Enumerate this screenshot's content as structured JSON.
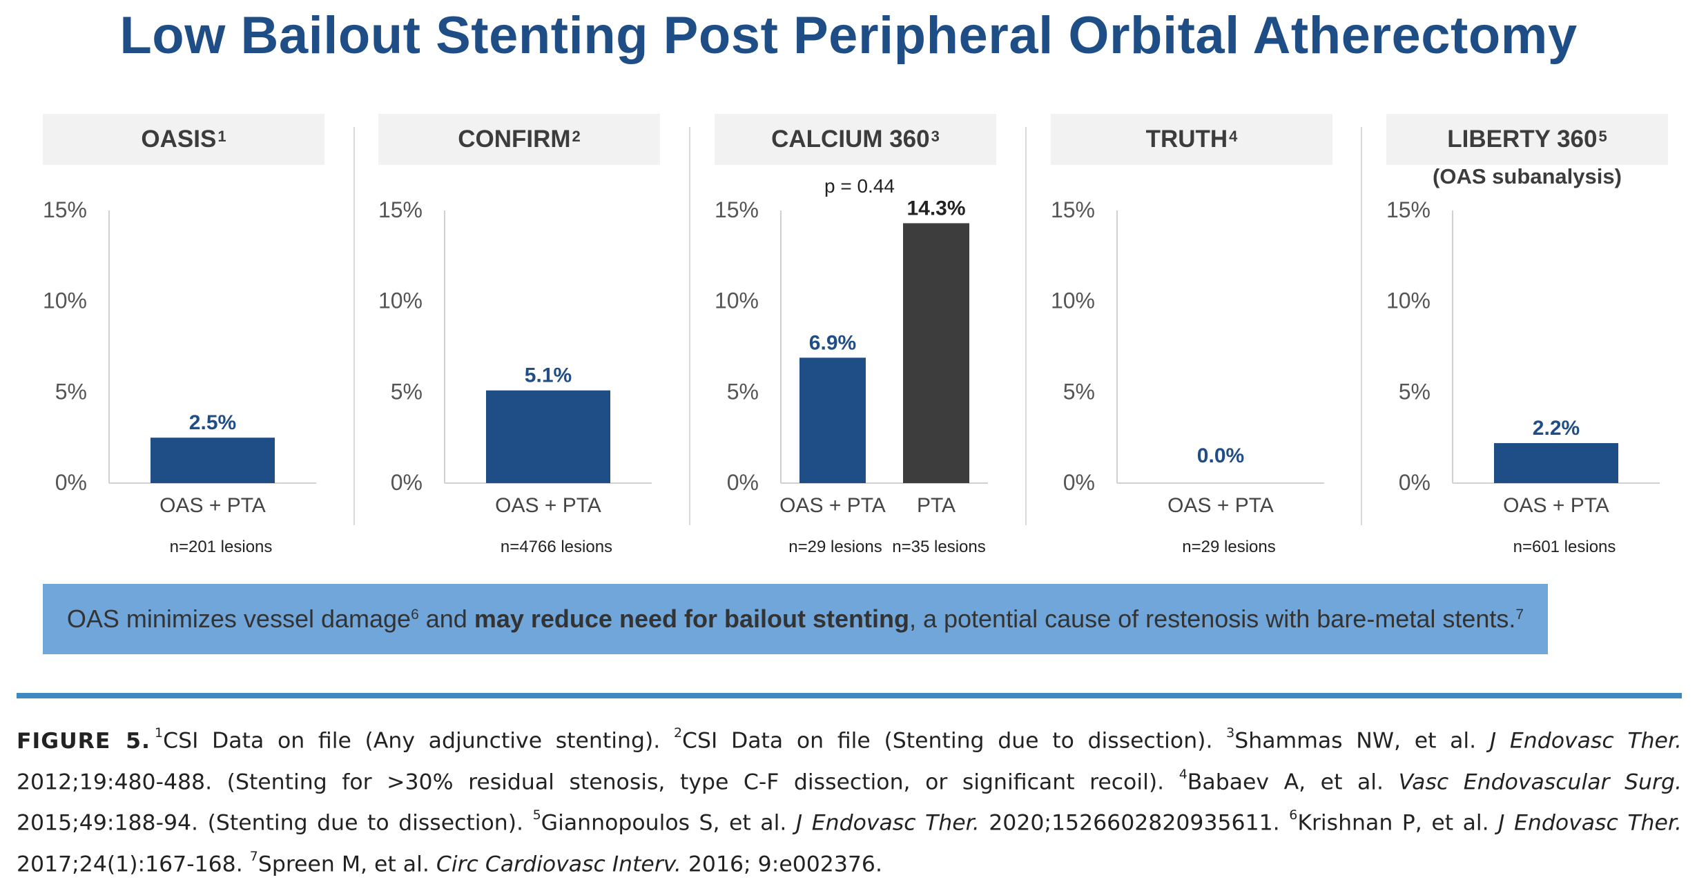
{
  "title": "Low Bailout Stenting Post Peripheral Orbital Atherectomy",
  "colors": {
    "title": "#1f4e86",
    "oas_bar": "#1f4e86",
    "pta_bar": "#3d3d3d",
    "banner": "#70a6d9",
    "rule": "#3f89c1"
  },
  "chart_data": [
    {
      "type": "bar",
      "title": "OASIS",
      "title_ref": "1",
      "subtitle": "",
      "categories": [
        "OAS + PTA"
      ],
      "values": [
        2.5
      ],
      "value_labels": [
        "2.5%"
      ],
      "sample_sizes": [
        "n=201 lesions"
      ],
      "ylim": [
        0,
        15
      ],
      "yticks": [
        0,
        5,
        10,
        15
      ],
      "ytick_labels": [
        "0%",
        "5%",
        "10%",
        "15%"
      ],
      "p_value": ""
    },
    {
      "type": "bar",
      "title": "CONFIRM",
      "title_ref": "2",
      "subtitle": "",
      "categories": [
        "OAS + PTA"
      ],
      "values": [
        5.1
      ],
      "value_labels": [
        "5.1%"
      ],
      "sample_sizes": [
        "n=4766 lesions"
      ],
      "ylim": [
        0,
        15
      ],
      "yticks": [
        0,
        5,
        10,
        15
      ],
      "ytick_labels": [
        "0%",
        "5%",
        "10%",
        "15%"
      ],
      "p_value": ""
    },
    {
      "type": "bar",
      "title": "CALCIUM 360",
      "title_ref": "3",
      "subtitle": "",
      "categories": [
        "OAS + PTA",
        "PTA"
      ],
      "values": [
        6.9,
        14.3
      ],
      "value_labels": [
        "6.9%",
        "14.3%"
      ],
      "sample_sizes": [
        "n=29 lesions",
        "n=35 lesions"
      ],
      "ylim": [
        0,
        15
      ],
      "yticks": [
        0,
        5,
        10,
        15
      ],
      "ytick_labels": [
        "0%",
        "5%",
        "10%",
        "15%"
      ],
      "p_value": "p = 0.44"
    },
    {
      "type": "bar",
      "title": "TRUTH",
      "title_ref": "4",
      "subtitle": "",
      "categories": [
        "OAS + PTA"
      ],
      "values": [
        0.0
      ],
      "value_labels": [
        "0.0%"
      ],
      "sample_sizes": [
        "n=29 lesions"
      ],
      "ylim": [
        0,
        15
      ],
      "yticks": [
        0,
        5,
        10,
        15
      ],
      "ytick_labels": [
        "0%",
        "5%",
        "10%",
        "15%"
      ],
      "p_value": ""
    },
    {
      "type": "bar",
      "title": "LIBERTY 360",
      "title_ref": "5",
      "subtitle": "(OAS subanalysis)",
      "categories": [
        "OAS + PTA"
      ],
      "values": [
        2.2
      ],
      "value_labels": [
        "2.2%"
      ],
      "sample_sizes": [
        "n=601 lesions"
      ],
      "ylim": [
        0,
        15
      ],
      "yticks": [
        0,
        5,
        10,
        15
      ],
      "ytick_labels": [
        "0%",
        "5%",
        "10%",
        "15%"
      ],
      "p_value": ""
    }
  ],
  "banner": {
    "text_before": "OAS minimizes vessel damage",
    "ref_before": "6",
    "text_mid": " and ",
    "text_bold": "may reduce need for bailout stenting",
    "text_after": ", a potential cause of restenosis with bare-metal stents.",
    "ref_after": "7"
  },
  "caption": {
    "label": "FIGURE 5.",
    "r1": "1",
    "t1": "CSI Data on file (Any adjunctive stenting). ",
    "r2": "2",
    "t2": "CSI Data on file (Stenting due to dissection). ",
    "r3": "3",
    "t3a": "Shammas NW, et al. ",
    "t3j": "J Endovasc Ther.",
    "t3b": " 2012;19:480-488. (Stenting for >30% residual stenosis, type C-F dissection, or significant recoil). ",
    "r4": "4",
    "t4a": "Babaev A, et al. ",
    "t4j": "Vasc Endovascular Surg.",
    "t4b": " 2015;49:188-94. (Stenting due to dissection). ",
    "r5": "5",
    "t5a": "Giannopoulos S, et al. ",
    "t5j": "J Endovasc Ther.",
    "t5b": " 2020;1526602820935611. ",
    "r6": "6",
    "t6a": "Krishnan P, et al. ",
    "t6j": "J Endovasc Ther.",
    "t6b": " 2017;24(1):167-168. ",
    "r7": "7",
    "t7a": "Spreen M, et al. ",
    "t7j": "Circ Cardiovasc Interv.",
    "t7b": " 2016; 9:e002376."
  }
}
